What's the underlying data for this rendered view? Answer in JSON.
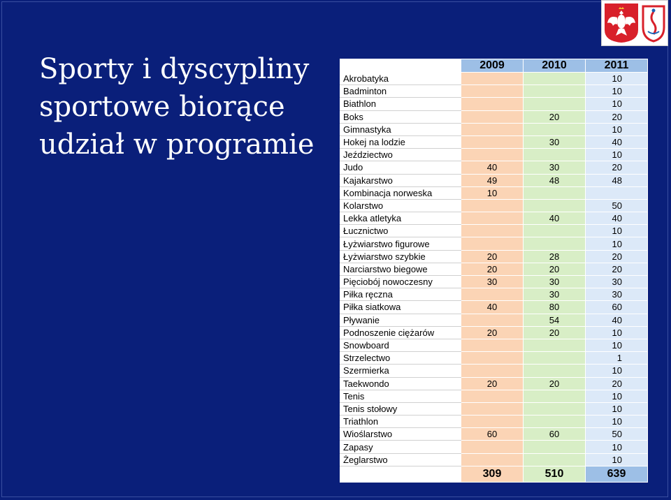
{
  "title_lines": [
    "Sporty i dyscypliny",
    "sportowe biorące",
    "udział w programie"
  ],
  "logos": {
    "left": "polish-eagle-emblem",
    "right": "olympic-committee-emblem"
  },
  "table": {
    "headers": [
      "2009",
      "2010",
      "2011"
    ],
    "rows": [
      {
        "name": "Akrobatyka",
        "y2009": "",
        "y2010": "",
        "y2011": "10"
      },
      {
        "name": "Badminton",
        "y2009": "",
        "y2010": "",
        "y2011": "10"
      },
      {
        "name": "Biathlon",
        "y2009": "",
        "y2010": "",
        "y2011": "10"
      },
      {
        "name": "Boks",
        "y2009": "",
        "y2010": "20",
        "y2011": "20"
      },
      {
        "name": "Gimnastyka",
        "y2009": "",
        "y2010": "",
        "y2011": "10"
      },
      {
        "name": "Hokej na lodzie",
        "y2009": "",
        "y2010": "30",
        "y2011": "40"
      },
      {
        "name": "Jeździectwo",
        "y2009": "",
        "y2010": "",
        "y2011": "10"
      },
      {
        "name": "Judo",
        "y2009": "40",
        "y2010": "30",
        "y2011": "20"
      },
      {
        "name": "Kajakarstwo",
        "y2009": "49",
        "y2010": "48",
        "y2011": "48"
      },
      {
        "name": "Kombinacja norweska",
        "y2009": "10",
        "y2010": "",
        "y2011": ""
      },
      {
        "name": "Kolarstwo",
        "y2009": "",
        "y2010": "",
        "y2011": "50"
      },
      {
        "name": "Lekka atletyka",
        "y2009": "",
        "y2010": "40",
        "y2011": "40"
      },
      {
        "name": "Łucznictwo",
        "y2009": "",
        "y2010": "",
        "y2011": "10"
      },
      {
        "name": "Łyżwiarstwo figurowe",
        "y2009": "",
        "y2010": "",
        "y2011": "10"
      },
      {
        "name": "Łyżwiarstwo szybkie",
        "y2009": "20",
        "y2010": "28",
        "y2011": "20"
      },
      {
        "name": "Narciarstwo biegowe",
        "y2009": "20",
        "y2010": "20",
        "y2011": "20"
      },
      {
        "name": "Pięciobój nowoczesny",
        "y2009": "30",
        "y2010": "30",
        "y2011": "30"
      },
      {
        "name": "Piłka ręczna",
        "y2009": "",
        "y2010": "30",
        "y2011": "30"
      },
      {
        "name": "Piłka siatkowa",
        "y2009": "40",
        "y2010": "80",
        "y2011": "60"
      },
      {
        "name": "Pływanie",
        "y2009": "",
        "y2010": "54",
        "y2011": "40"
      },
      {
        "name": "Podnoszenie ciężarów",
        "y2009": "20",
        "y2010": "20",
        "y2011": "10"
      },
      {
        "name": "Snowboard",
        "y2009": "",
        "y2010": "",
        "y2011": "10"
      },
      {
        "name": "Strzelectwo",
        "y2009": "",
        "y2010": "",
        "y2011": "1"
      },
      {
        "name": "Szermierka",
        "y2009": "",
        "y2010": "",
        "y2011": "10"
      },
      {
        "name": "Taekwondo",
        "y2009": "20",
        "y2010": "20",
        "y2011": "20"
      },
      {
        "name": "Tenis",
        "y2009": "",
        "y2010": "",
        "y2011": "10"
      },
      {
        "name": "Tenis stołowy",
        "y2009": "",
        "y2010": "",
        "y2011": "10"
      },
      {
        "name": "Triathlon",
        "y2009": "",
        "y2010": "",
        "y2011": "10"
      },
      {
        "name": "Wioślarstwo",
        "y2009": "60",
        "y2010": "60",
        "y2011": "50"
      },
      {
        "name": "Zapasy",
        "y2009": "",
        "y2010": "",
        "y2011": "10"
      },
      {
        "name": "Żeglarstwo",
        "y2009": "",
        "y2010": "",
        "y2011": "10"
      }
    ],
    "totals": {
      "y2009": "309",
      "y2010": "510",
      "y2011": "639"
    }
  },
  "colors": {
    "background": "#0a1f7a",
    "header_year": "#9dbfe6",
    "col_2009": "#fbd4b5",
    "col_2010": "#d8eec6",
    "col_2011": "#dce9f8"
  }
}
